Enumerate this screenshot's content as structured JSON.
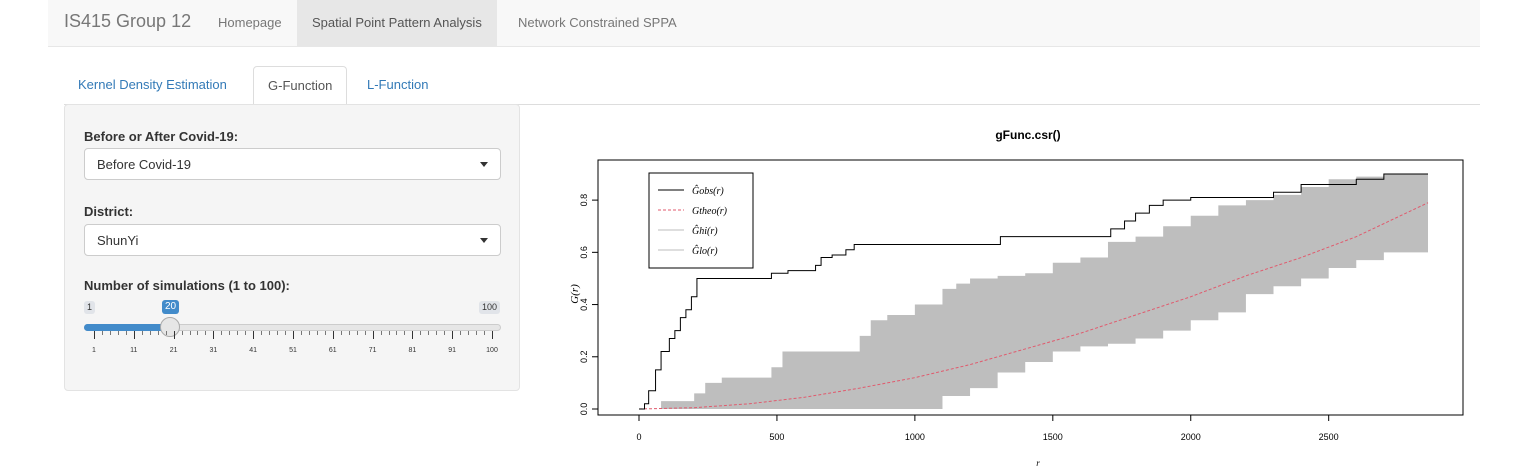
{
  "navbar": {
    "brand": "IS415 Group 12",
    "items": [
      {
        "label": "Homepage"
      },
      {
        "label": "Spatial Point Pattern Analysis",
        "active": true
      },
      {
        "label": "Network Constrained SPPA"
      }
    ]
  },
  "tabs": [
    {
      "label": "Kernel Density Estimation"
    },
    {
      "label": "G-Function",
      "active": true
    },
    {
      "label": "L-Function"
    }
  ],
  "sidebar": {
    "covid": {
      "label": "Before or After Covid-19:",
      "selected": "Before Covid-19"
    },
    "district": {
      "label": "District:",
      "selected": "ShunYi"
    },
    "simulations": {
      "label": "Number of simulations (1 to 100):",
      "min": "1",
      "max": "100",
      "value": "20",
      "fraction": 0.192,
      "tick_labels": [
        "1",
        "11",
        "21",
        "31",
        "41",
        "51",
        "61",
        "71",
        "81",
        "91",
        "100"
      ]
    }
  },
  "chart_data": {
    "type": "line",
    "title": "gFunc.csr()",
    "xlabel": "r",
    "ylabel": "G(r)",
    "xlim": [
      0,
      2860
    ],
    "ylim": [
      0,
      0.9
    ],
    "x_ticks": [
      "0",
      "500",
      "1000",
      "1500",
      "2000",
      "2500"
    ],
    "y_ticks": [
      "0.0",
      "0.2",
      "0.4",
      "0.6",
      "0.8"
    ],
    "legend": [
      "Ĝobs(r)",
      "Gtheo(r)",
      "Ĝhi(r)",
      "Ĝlo(r)"
    ],
    "legend_position": "top-left",
    "colors": {
      "obs": "#000000",
      "theo": "#e05a6d",
      "envelope": "#bebebe"
    },
    "obs": {
      "x": [
        0,
        20,
        35,
        60,
        80,
        110,
        130,
        150,
        170,
        190,
        210,
        460,
        480,
        520,
        540,
        560,
        640,
        660,
        700,
        750,
        780,
        1000,
        1290,
        1310,
        1700,
        1710,
        1750,
        1760,
        1800,
        1850,
        1900,
        2000,
        2300,
        2400,
        2550,
        2600,
        2700,
        2860
      ],
      "y": [
        0,
        0.02,
        0.07,
        0.15,
        0.22,
        0.27,
        0.3,
        0.35,
        0.38,
        0.43,
        0.5,
        0.5,
        0.52,
        0.52,
        0.53,
        0.53,
        0.55,
        0.58,
        0.59,
        0.61,
        0.63,
        0.63,
        0.63,
        0.66,
        0.66,
        0.69,
        0.69,
        0.72,
        0.75,
        0.78,
        0.8,
        0.81,
        0.83,
        0.86,
        0.86,
        0.88,
        0.9,
        0.9
      ]
    },
    "theo": {
      "x": [
        0,
        200,
        400,
        600,
        800,
        1000,
        1200,
        1400,
        1600,
        1800,
        2000,
        2200,
        2400,
        2600,
        2860
      ],
      "y": [
        0,
        0.005,
        0.02,
        0.045,
        0.08,
        0.12,
        0.17,
        0.23,
        0.29,
        0.36,
        0.43,
        0.51,
        0.58,
        0.66,
        0.79
      ]
    },
    "hi": {
      "x": [
        0,
        80,
        100,
        200,
        220,
        240,
        300,
        400,
        480,
        520,
        640,
        700,
        800,
        840,
        900,
        1000,
        1100,
        1150,
        1200,
        1300,
        1400,
        1500,
        1600,
        1700,
        1800,
        1900,
        2000,
        2100,
        2200,
        2300,
        2400,
        2500,
        2600,
        2700,
        2860
      ],
      "y": [
        0,
        0.03,
        0.03,
        0.06,
        0.06,
        0.1,
        0.12,
        0.12,
        0.16,
        0.22,
        0.22,
        0.22,
        0.28,
        0.34,
        0.36,
        0.4,
        0.46,
        0.48,
        0.5,
        0.51,
        0.52,
        0.56,
        0.58,
        0.64,
        0.66,
        0.7,
        0.74,
        0.78,
        0.8,
        0.82,
        0.85,
        0.88,
        0.89,
        0.9,
        0.9
      ]
    },
    "lo": {
      "x": [
        0,
        800,
        1000,
        1100,
        1200,
        1300,
        1400,
        1500,
        1600,
        1700,
        1800,
        1900,
        2000,
        2100,
        2200,
        2300,
        2400,
        2500,
        2600,
        2700,
        2860
      ],
      "y": [
        0,
        0,
        0,
        0.05,
        0.08,
        0.14,
        0.18,
        0.22,
        0.24,
        0.25,
        0.27,
        0.3,
        0.34,
        0.37,
        0.44,
        0.47,
        0.5,
        0.54,
        0.57,
        0.6,
        0.64
      ]
    }
  }
}
